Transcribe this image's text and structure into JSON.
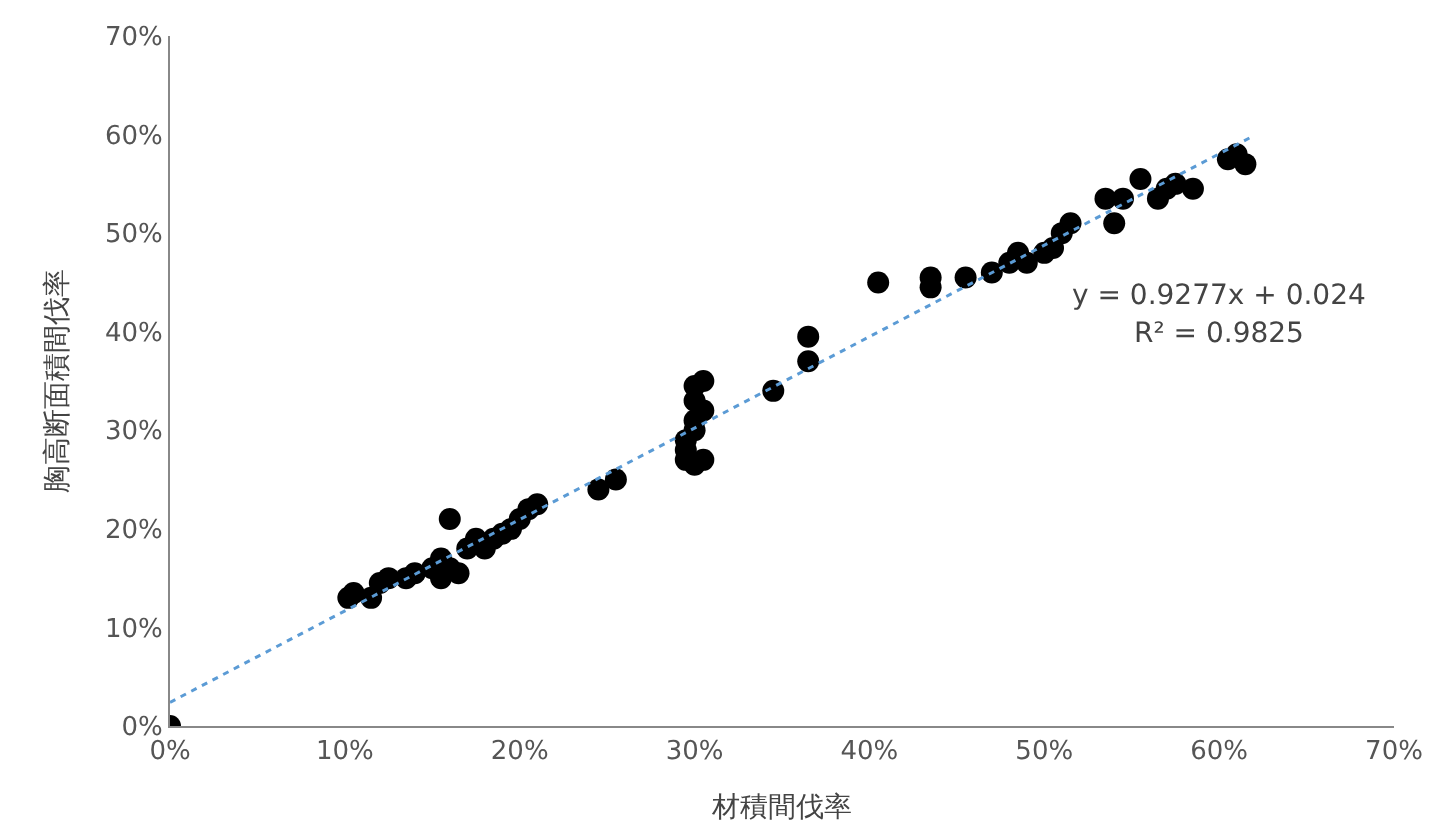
{
  "chart_data": {
    "type": "scatter",
    "xlabel": "材積間伐率",
    "ylabel": "胸高断面積間伐率",
    "xlim": [
      0,
      70
    ],
    "ylim": [
      0,
      70
    ],
    "xticks": [
      {
        "value": 0,
        "label": "0%"
      },
      {
        "value": 10,
        "label": "10%"
      },
      {
        "value": 20,
        "label": "20%"
      },
      {
        "value": 30,
        "label": "30%"
      },
      {
        "value": 40,
        "label": "40%"
      },
      {
        "value": 50,
        "label": "50%"
      },
      {
        "value": 60,
        "label": "60%"
      },
      {
        "value": 70,
        "label": "70%"
      }
    ],
    "yticks": [
      {
        "value": 0,
        "label": "0%"
      },
      {
        "value": 10,
        "label": "10%"
      },
      {
        "value": 20,
        "label": "20%"
      },
      {
        "value": 30,
        "label": "30%"
      },
      {
        "value": 40,
        "label": "40%"
      },
      {
        "value": 50,
        "label": "50%"
      },
      {
        "value": 60,
        "label": "60%"
      },
      {
        "value": 70,
        "label": "70%"
      }
    ],
    "series": [
      {
        "marker": "circle",
        "color": "#000000",
        "x": [
          0,
          10.2,
          10.5,
          11.5,
          12,
          12.5,
          13.5,
          14,
          15,
          15.5,
          15.5,
          16,
          16,
          16.5,
          17,
          17.5,
          18,
          18.5,
          19,
          19.5,
          20,
          20.5,
          21,
          24.5,
          25.5,
          29.5,
          29.5,
          29.5,
          30,
          30,
          30,
          30,
          30.5,
          30.5,
          30,
          30.5,
          34.5,
          36.5,
          36.5,
          40.5,
          43.5,
          43.5,
          45.5,
          47,
          48,
          48.5,
          49,
          50,
          50.5,
          51,
          51.5,
          53.5,
          54,
          54.5,
          55.5,
          56.5,
          57,
          57.5,
          58.5,
          60.5,
          61,
          61.5
        ],
        "values": [
          0,
          13,
          13.5,
          13,
          14.5,
          15,
          15,
          15.5,
          16,
          15,
          17,
          21,
          16,
          15.5,
          18,
          19,
          18,
          19,
          19.5,
          20,
          21,
          22,
          22.5,
          24,
          25,
          27,
          28,
          29,
          30,
          31,
          33,
          34.5,
          35,
          27,
          26.5,
          32,
          34,
          37,
          39.5,
          45,
          45.5,
          44.5,
          45.5,
          46,
          47,
          48,
          47,
          48,
          48.5,
          50,
          51,
          53.5,
          51,
          53.5,
          55.5,
          53.5,
          54.5,
          55,
          54.5,
          57.5,
          58,
          57
        ]
      },
      {
        "type": "line",
        "color": "#5b9bd5",
        "line_style": "dotted",
        "x": [
          0,
          62
        ],
        "values": [
          2.4,
          59.9
        ]
      }
    ],
    "annotations": [
      "y = 0.9277x + 0.024",
      "R² = 0.9825"
    ]
  }
}
